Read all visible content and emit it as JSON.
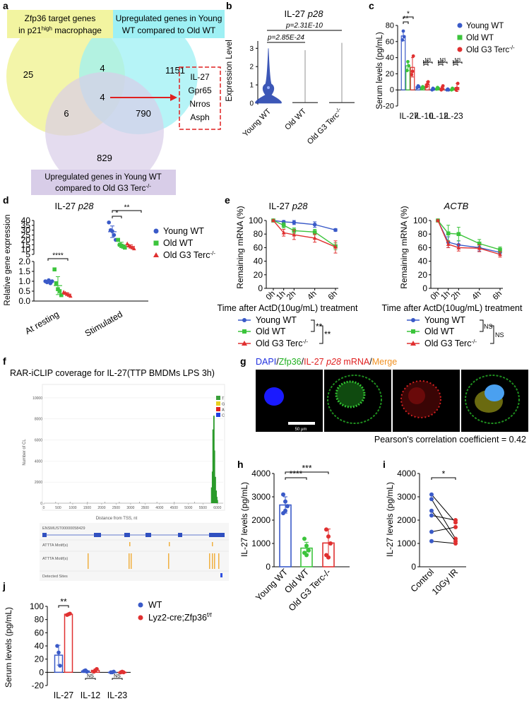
{
  "figure": {
    "panel_letters": [
      "a",
      "b",
      "c",
      "d",
      "e",
      "f",
      "g",
      "h",
      "i",
      "j"
    ]
  },
  "colors": {
    "young": "#3a5ac8",
    "old": "#3cc43c",
    "terc": "#e03030",
    "venn_yellow": "#f2f4a0",
    "venn_cyan": "#9ef0f4",
    "venn_purple": "#d8cde8",
    "arrow": "#e02020"
  },
  "panel_a": {
    "labels": {
      "set1": [
        "Zfp36 target genes",
        "in p21",
        "high",
        " macrophage"
      ],
      "set2": [
        "Upregulated genes in Young",
        "WT compared to Old WT"
      ],
      "set3": [
        "Upregulated genes in Young WT",
        "compared to Old G3 Terc",
        "-/-"
      ]
    },
    "counts": {
      "only1": "25",
      "one_two": "4",
      "only2": "1151",
      "center": "4",
      "one_three": "6",
      "two_three": "790",
      "only3": "829"
    },
    "genes": [
      "IL-27",
      "Gpr65",
      "Nrros",
      "Asph"
    ]
  },
  "panel_b": {
    "title": [
      "IL-27 ",
      "p28"
    ],
    "ylabel": "Expression Level",
    "yticks": [
      "0",
      "1",
      "2",
      "3"
    ],
    "groups": [
      "Young WT",
      "Old WT",
      "Old G3 Terc"
    ],
    "terc_sup": "-/-",
    "pvalues": [
      "p=2.85E-24",
      "p=2.31E-10"
    ]
  },
  "legend_three": {
    "young": "Young WT",
    "old": "Old WT",
    "terc": "Old G3 Terc",
    "sup": "-/-"
  },
  "legend_two": {
    "wt": "WT",
    "cre": "Lyz2-cre;Zfp36",
    "sup": "f/f"
  },
  "panel_e": {
    "left_title": [
      "IL-27 ",
      "p28"
    ],
    "right_title": "ACTB",
    "ylabel": "Remaining mRNA (%)",
    "xlabel": "Time after ActD(10ug/mL) treatment",
    "xticks": [
      "0h",
      "1h",
      "2h",
      "4h",
      "6h"
    ],
    "yticks": [
      "0",
      "20",
      "40",
      "60",
      "80",
      "100"
    ],
    "sig_left": [
      "**",
      "**"
    ],
    "sig_right": [
      "NS",
      "NS"
    ]
  },
  "panel_f": {
    "title": "RAR-iCLIP coverage for IL-27(TTP BMDMs LPS 3h)",
    "ylabel": "Number of CL",
    "xlabel": "Distance from TSS, nt",
    "yticks": [
      "0",
      "2000",
      "4000",
      "6000",
      "8000",
      "10000"
    ],
    "xticks": [
      "0",
      "500",
      "1000",
      "1500",
      "2000",
      "2500",
      "3000",
      "3500",
      "4000",
      "4500",
      "5000",
      "5500",
      "6000"
    ],
    "legend": [
      "T",
      "G",
      "A",
      "C"
    ],
    "legend_colors": [
      "#3aa03a",
      "#e8d020",
      "#e02020",
      "#2040e0"
    ],
    "tracks": [
      "ENSMUST00000058429",
      "ATTTA Motif(s)",
      "ATTTA Motif(s)",
      "Detected Sites"
    ]
  },
  "panel_g": {
    "title_parts": [
      "DAPI",
      "/",
      "Zfp36",
      "/",
      "IL-27 ",
      "p28",
      " mRNA",
      "/",
      "Merge"
    ],
    "scale": "50 μm",
    "pearson": "Pearson's correlation coefficient = 0.42"
  },
  "chart_data": [
    {
      "id": "b",
      "type": "violin",
      "title": "IL-27 p28",
      "ylabel": "Expression Level",
      "ylim": [
        0,
        3.4
      ],
      "categories": [
        "Young WT",
        "Old WT",
        "Old G3 Terc-/-"
      ],
      "max_values": [
        3.0,
        2.9,
        3.3
      ],
      "median_marker": [
        0.85,
        0.02,
        0.02
      ],
      "pvalues": [
        {
          "pair": [
            "Young WT",
            "Old WT"
          ],
          "text": "p=2.85E-24"
        },
        {
          "pair": [
            "Young WT",
            "Old G3 Terc-/-"
          ],
          "text": "p=2.31E-10"
        }
      ]
    },
    {
      "id": "c",
      "type": "bar",
      "ylabel": "Serum levels (pg/mL)",
      "ylim": [
        -20,
        80
      ],
      "yticks": [
        "-20",
        "0",
        "20",
        "40",
        "60",
        "80"
      ],
      "categories": [
        "IL-27",
        "IL-10",
        "IL-12",
        "IL-23"
      ],
      "series": [
        {
          "name": "Young WT",
          "values": [
            67,
            4,
            1,
            0
          ],
          "err": [
            6,
            1,
            1,
            1
          ],
          "points": [
            [
              62,
              73,
              66
            ],
            [
              3,
              5,
              4
            ],
            [
              0,
              2,
              1
            ],
            [
              0,
              1,
              0
            ]
          ]
        },
        {
          "name": "Old WT",
          "values": [
            30,
            3,
            2,
            1
          ],
          "err": [
            6,
            1,
            1,
            1
          ],
          "points": [
            [
              24,
              35,
              30
            ],
            [
              2,
              4,
              3
            ],
            [
              1,
              3,
              2
            ],
            [
              0,
              2,
              1
            ]
          ]
        },
        {
          "name": "Old G3 Terc-/-",
          "values": [
            28,
            7,
            2,
            3
          ],
          "err": [
            12,
            3,
            2,
            5
          ],
          "points": [
            [
              19,
              23,
              42
            ],
            [
              4,
              7,
              10
            ],
            [
              0,
              2,
              5
            ],
            [
              0,
              2,
              8
            ]
          ]
        }
      ],
      "significance": [
        "**",
        "*",
        "NS",
        "NS",
        "NS",
        "NS",
        "NS",
        "NS"
      ]
    },
    {
      "id": "d",
      "type": "scatter",
      "title": "IL-27 p28",
      "ylabel": "Relative gene expression",
      "ylim_lower": [
        0,
        2.0
      ],
      "ylim_upper": [
        5,
        40
      ],
      "yticks_lower": [
        "0.0",
        "0.5",
        "1.0",
        "1.5",
        "2.0"
      ],
      "yticks_upper": [
        "5",
        "10",
        "15",
        "20",
        "25",
        "30",
        "35",
        "40"
      ],
      "categories": [
        "At resting",
        "Stimulated"
      ],
      "series": [
        {
          "name": "Young WT",
          "points": [
            [
              1.0,
              0.95,
              1.05,
              0.9,
              1.0
            ],
            [
              38,
              30,
              29,
              25,
              20
            ]
          ]
        },
        {
          "name": "Old WT",
          "points": [
            [
              1.6,
              0.9,
              0.6,
              0.5,
              0.3
            ],
            [
              20,
              15,
              14,
              13,
              12
            ]
          ]
        },
        {
          "name": "Old G3 Terc-/-",
          "points": [
            [
              0.45,
              0.4,
              0.35,
              0.3,
              0.25
            ],
            [
              16,
              14,
              13,
              12,
              11
            ]
          ]
        }
      ],
      "significance": [
        "****",
        "*",
        "**"
      ]
    },
    {
      "id": "e_left",
      "type": "line",
      "title": "IL-27 p28",
      "ylabel": "Remaining mRNA (%)",
      "xlabel": "Time after ActD(10ug/mL) treatment",
      "x": [
        "0h",
        "1h",
        "2h",
        "4h",
        "6h"
      ],
      "ylim": [
        0,
        100
      ],
      "series": [
        {
          "name": "Young WT",
          "values": [
            100,
            98,
            97,
            94,
            86
          ],
          "err": [
            1,
            2,
            3,
            4,
            2
          ]
        },
        {
          "name": "Old WT",
          "values": [
            100,
            93,
            85,
            83,
            62
          ],
          "err": [
            1,
            4,
            4,
            4,
            5
          ]
        },
        {
          "name": "Old G3 Terc-/-",
          "values": [
            100,
            82,
            79,
            74,
            61
          ],
          "err": [
            1,
            5,
            7,
            6,
            9
          ]
        }
      ]
    },
    {
      "id": "e_right",
      "type": "line",
      "title": "ACTB",
      "ylabel": "Remaining mRNA (%)",
      "xlabel": "Time after ActD(10ug/mL) treatment",
      "x": [
        "0h",
        "1h",
        "2h",
        "4h",
        "6h"
      ],
      "ylim": [
        0,
        100
      ],
      "series": [
        {
          "name": "Young WT",
          "values": [
            100,
            68,
            64,
            60,
            53
          ],
          "err": [
            1,
            8,
            6,
            5,
            4
          ]
        },
        {
          "name": "Old WT",
          "values": [
            100,
            81,
            80,
            66,
            57
          ],
          "err": [
            1,
            12,
            10,
            6,
            4
          ]
        },
        {
          "name": "Old G3 Terc-/-",
          "values": [
            100,
            65,
            60,
            59,
            50
          ],
          "err": [
            1,
            5,
            5,
            5,
            4
          ]
        }
      ]
    },
    {
      "id": "f",
      "type": "bar",
      "title": "RAR-iCLIP coverage for IL-27(TTP BMDMs LPS 3h)",
      "xlabel": "Distance from TSS, nt",
      "ylabel": "Number of CL",
      "xlim": [
        0,
        6200
      ],
      "ylim": [
        0,
        11000
      ],
      "x": [
        5800,
        5830,
        5850,
        5880,
        5900,
        5930,
        5960,
        5980,
        6000
      ],
      "values": [
        1500,
        3000,
        7000,
        8300,
        5000,
        2500,
        1200,
        600,
        300
      ]
    },
    {
      "id": "h",
      "type": "bar",
      "ylabel": "IL-27 levels (pg/mL)",
      "ylim": [
        0,
        4000
      ],
      "yticks": [
        "0",
        "1000",
        "2000",
        "3000",
        "4000"
      ],
      "categories": [
        "Young WT",
        "Old WT",
        "Old G3 Terc-/-"
      ],
      "values": [
        2650,
        800,
        1020
      ],
      "err": [
        350,
        250,
        600
      ],
      "points": [
        [
          3100,
          2800,
          2600,
          2300,
          2400
        ],
        [
          1200,
          900,
          700,
          600,
          500
        ],
        [
          1600,
          1300,
          1000,
          500,
          400
        ]
      ],
      "significance": [
        "****",
        "***"
      ]
    },
    {
      "id": "i",
      "type": "paired",
      "ylabel": "IL-27 levels (pg/mL)",
      "ylim": [
        0,
        4000
      ],
      "yticks": [
        "0",
        "1000",
        "2000",
        "3000",
        "4000"
      ],
      "categories": [
        "Control",
        "10Gy IR"
      ],
      "pairs": [
        [
          3100,
          1900
        ],
        [
          2900,
          1200
        ],
        [
          2400,
          1100
        ],
        [
          2200,
          2000
        ],
        [
          1500,
          1700
        ],
        [
          1100,
          1000
        ]
      ],
      "significance": [
        "*"
      ]
    },
    {
      "id": "j",
      "type": "bar",
      "ylabel": "Serum levels (pg/mL)",
      "ylim": [
        -20,
        100
      ],
      "yticks": [
        "-20",
        "0",
        "20",
        "40",
        "60",
        "80",
        "100"
      ],
      "categories": [
        "IL-27",
        "IL-12",
        "IL-23"
      ],
      "series": [
        {
          "name": "WT",
          "values": [
            26,
            2,
            0
          ],
          "err": [
            15,
            2,
            1
          ],
          "points": [
            [
              40,
              30,
              10
            ],
            [
              2,
              3,
              1
            ],
            [
              0,
              0,
              1
            ]
          ]
        },
        {
          "name": "Lyz2-cre;Zfp36f/f",
          "values": [
            88,
            3,
            0
          ],
          "err": [
            1,
            2,
            1
          ],
          "points": [
            [
              87,
              88,
              89
            ],
            [
              1,
              3,
              5
            ],
            [
              0,
              1,
              0
            ]
          ]
        }
      ],
      "significance": [
        "**",
        "NS",
        "NS"
      ]
    }
  ]
}
